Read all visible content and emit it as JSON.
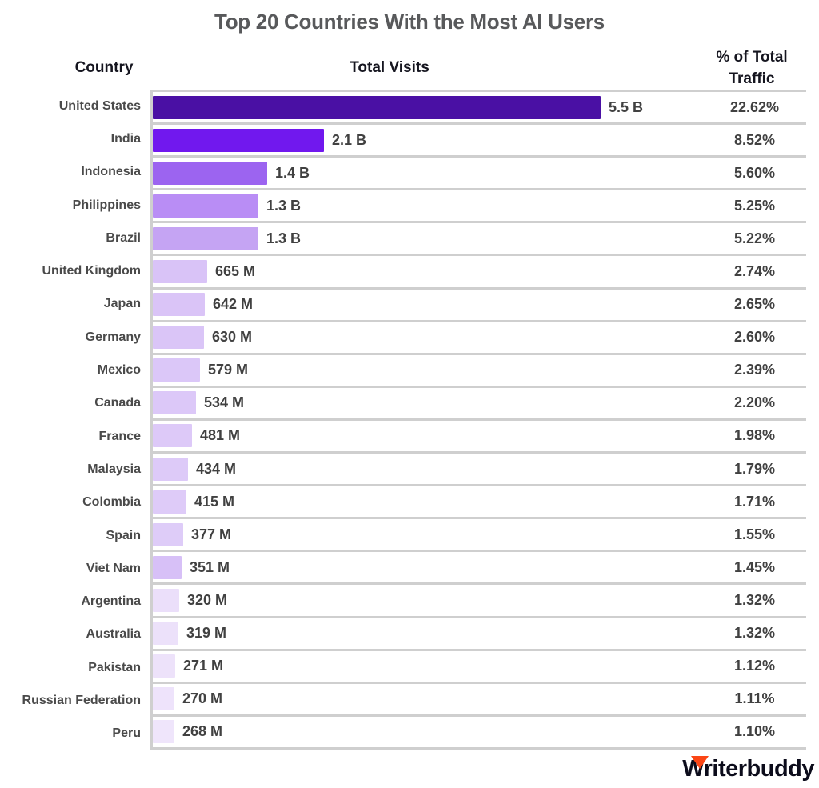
{
  "title": "Top 20 Countries With the Most AI Users",
  "header": {
    "country": "Country",
    "total_visits": "Total Visits",
    "pct_line1": "% of Total",
    "pct_line2": "Traffic"
  },
  "chart_data": {
    "type": "bar",
    "orientation": "horizontal",
    "title": "Top 20 Countries With the Most AI Users",
    "columns": [
      "Country",
      "Total Visits",
      "% of Total Traffic"
    ],
    "x_max_millions": 5500,
    "grid": "row-separators",
    "rows": [
      {
        "country": "United States",
        "visits_label": "5.5 B",
        "visits_millions": 5500,
        "traffic_pct": "22.62%",
        "traffic_pct_value": 22.62,
        "bar_color": "#4A10A4"
      },
      {
        "country": "India",
        "visits_label": "2.1 B",
        "visits_millions": 2100,
        "traffic_pct": "8.52%",
        "traffic_pct_value": 8.52,
        "bar_color": "#7118EE"
      },
      {
        "country": "Indonesia",
        "visits_label": "1.4 B",
        "visits_millions": 1400,
        "traffic_pct": "5.60%",
        "traffic_pct_value": 5.6,
        "bar_color": "#9C64F0"
      },
      {
        "country": "Philippines",
        "visits_label": "1.3 B",
        "visits_millions": 1300,
        "traffic_pct": "5.25%",
        "traffic_pct_value": 5.25,
        "bar_color": "#B98DF5"
      },
      {
        "country": "Brazil",
        "visits_label": "1.3 B",
        "visits_millions": 1300,
        "traffic_pct": "5.22%",
        "traffic_pct_value": 5.22,
        "bar_color": "#C5A4F3"
      },
      {
        "country": "United Kingdom",
        "visits_label": "665 M",
        "visits_millions": 665,
        "traffic_pct": "2.74%",
        "traffic_pct_value": 2.74,
        "bar_color": "#D9C3F7"
      },
      {
        "country": "Japan",
        "visits_label": "642 M",
        "visits_millions": 642,
        "traffic_pct": "2.65%",
        "traffic_pct_value": 2.65,
        "bar_color": "#DAC4F7"
      },
      {
        "country": "Germany",
        "visits_label": "630 M",
        "visits_millions": 630,
        "traffic_pct": "2.60%",
        "traffic_pct_value": 2.6,
        "bar_color": "#DAC5F7"
      },
      {
        "country": "Mexico",
        "visits_label": "579 M",
        "visits_millions": 579,
        "traffic_pct": "2.39%",
        "traffic_pct_value": 2.39,
        "bar_color": "#DBC7F8"
      },
      {
        "country": "Canada",
        "visits_label": "534 M",
        "visits_millions": 534,
        "traffic_pct": "2.20%",
        "traffic_pct_value": 2.2,
        "bar_color": "#DCC8F8"
      },
      {
        "country": "France",
        "visits_label": "481 M",
        "visits_millions": 481,
        "traffic_pct": "1.98%",
        "traffic_pct_value": 1.98,
        "bar_color": "#DDC9F8"
      },
      {
        "country": "Malaysia",
        "visits_label": "434 M",
        "visits_millions": 434,
        "traffic_pct": "1.79%",
        "traffic_pct_value": 1.79,
        "bar_color": "#DDCAF8"
      },
      {
        "country": "Colombia",
        "visits_label": "415 M",
        "visits_millions": 415,
        "traffic_pct": "1.71%",
        "traffic_pct_value": 1.71,
        "bar_color": "#DECBF8"
      },
      {
        "country": "Spain",
        "visits_label": "377 M",
        "visits_millions": 377,
        "traffic_pct": "1.55%",
        "traffic_pct_value": 1.55,
        "bar_color": "#DECCF8"
      },
      {
        "country": "Viet Nam",
        "visits_label": "351 M",
        "visits_millions": 351,
        "traffic_pct": "1.45%",
        "traffic_pct_value": 1.45,
        "bar_color": "#D7C0F7"
      },
      {
        "country": "Argentina",
        "visits_label": "320 M",
        "visits_millions": 320,
        "traffic_pct": "1.32%",
        "traffic_pct_value": 1.32,
        "bar_color": "#EBDFFA"
      },
      {
        "country": "Australia",
        "visits_label": "319 M",
        "visits_millions": 319,
        "traffic_pct": "1.32%",
        "traffic_pct_value": 1.32,
        "bar_color": "#ECE1FA"
      },
      {
        "country": "Pakistan",
        "visits_label": "271 M",
        "visits_millions": 271,
        "traffic_pct": "1.12%",
        "traffic_pct_value": 1.12,
        "bar_color": "#EDE2FA"
      },
      {
        "country": "Russian Federation",
        "visits_label": "270 M",
        "visits_millions": 270,
        "traffic_pct": "1.11%",
        "traffic_pct_value": 1.11,
        "bar_color": "#EEE3FB"
      },
      {
        "country": "Peru",
        "visits_label": "268 M",
        "visits_millions": 268,
        "traffic_pct": "1.10%",
        "traffic_pct_value": 1.1,
        "bar_color": "#EFE5FB"
      }
    ]
  },
  "colors": {
    "title_text": "#58595B",
    "header_text": "#15151F",
    "value_text": "#414141",
    "separator_line": "#CFCFCF",
    "logo_text": "#0C0C1B",
    "logo_accent": "#FB4616"
  },
  "branding": {
    "logo_text": "Writerbuddy"
  }
}
